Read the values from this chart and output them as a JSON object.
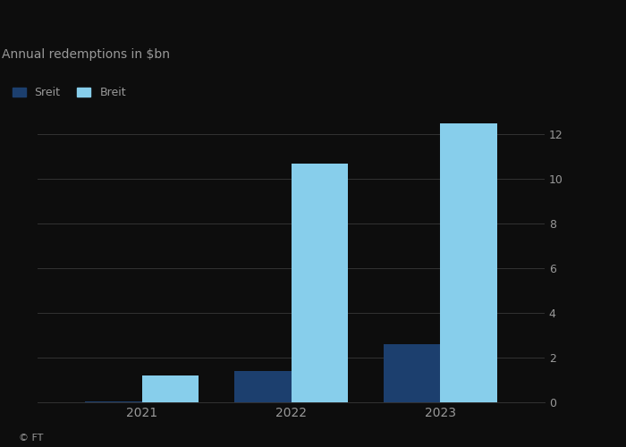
{
  "title": "Annual redemptions in $bn",
  "years": [
    "2021",
    "2022",
    "2023"
  ],
  "sreit_values": [
    0.05,
    1.4,
    2.6
  ],
  "breit_values": [
    1.2,
    10.7,
    12.5
  ],
  "sreit_color": "#1c3f6e",
  "breit_color": "#87ceeb",
  "background_color": "#0d0d0d",
  "text_color": "#999999",
  "grid_color": "#333333",
  "ylim": [
    0,
    13
  ],
  "yticks": [
    0,
    2,
    4,
    6,
    8,
    10,
    12
  ],
  "bar_width": 0.38,
  "legend_labels": [
    "Sreit",
    "Breit"
  ],
  "ft_label": "© FT"
}
